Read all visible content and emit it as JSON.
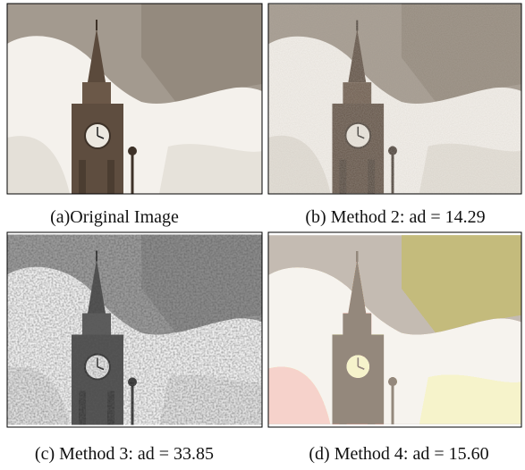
{
  "figure": {
    "panels": [
      {
        "caption": "(a)Original Image"
      },
      {
        "caption": "(b) Method 2: ad = 14.29"
      },
      {
        "caption": "(c) Method 3: ad = 33.85"
      },
      {
        "caption": "(d) Method 4: ad = 15.60"
      }
    ]
  }
}
